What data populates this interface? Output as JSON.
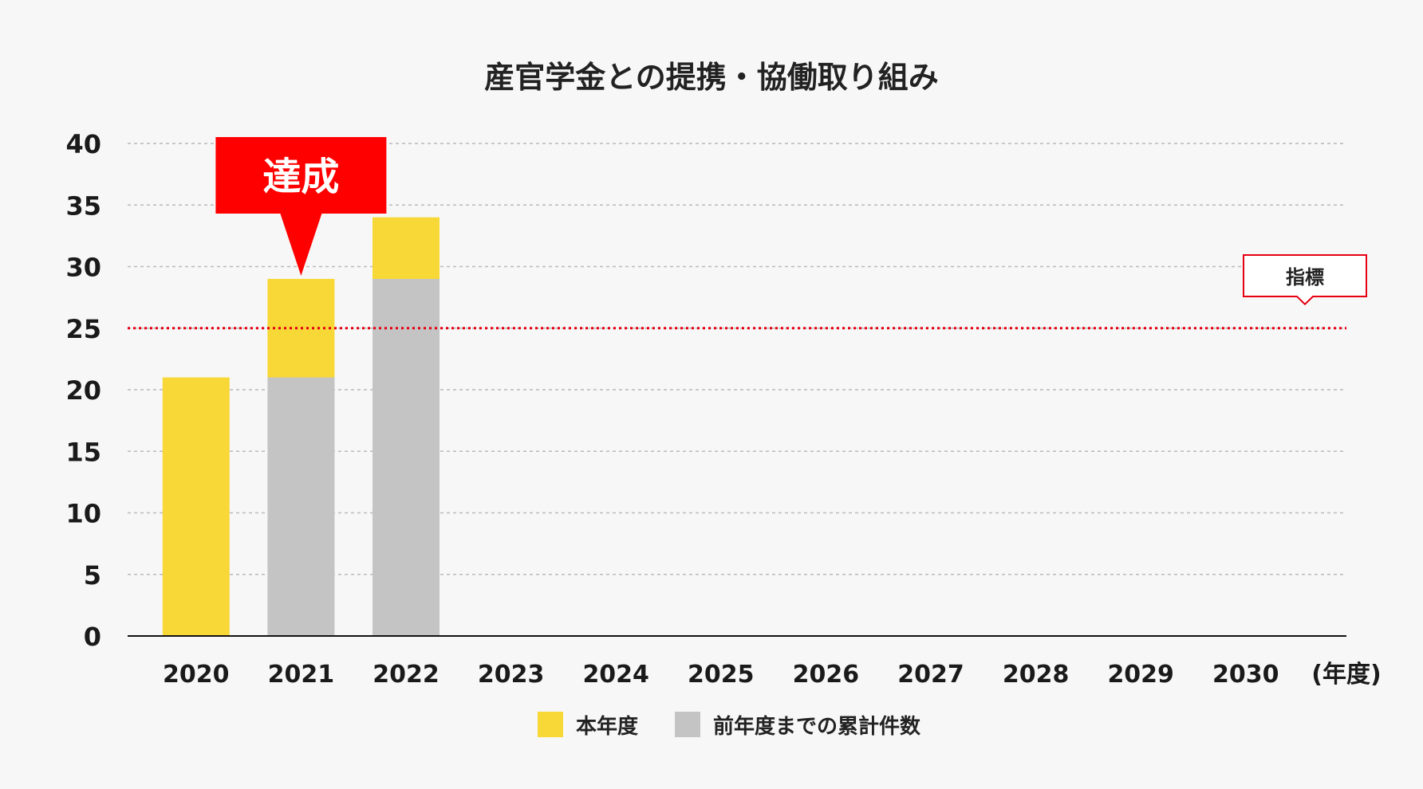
{
  "chart_data": {
    "type": "bar",
    "stacked": true,
    "title": "産官学金との提携・協働取り組み",
    "categories": [
      "2020",
      "2021",
      "2022",
      "2023",
      "2024",
      "2025",
      "2026",
      "2027",
      "2028",
      "2029",
      "2030"
    ],
    "x_unit_label": "(年度)",
    "series": [
      {
        "name": "前年度までの累計件数",
        "color": "#c4c4c4",
        "values": [
          0,
          21,
          29,
          null,
          null,
          null,
          null,
          null,
          null,
          null,
          null
        ]
      },
      {
        "name": "本年度",
        "color": "#f7d836",
        "values": [
          21,
          8,
          5,
          null,
          null,
          null,
          null,
          null,
          null,
          null,
          null
        ]
      }
    ],
    "ylim": [
      0,
      40
    ],
    "yticks": [
      0,
      5,
      10,
      15,
      20,
      25,
      30,
      35,
      40
    ],
    "grid": true,
    "legend_position": "bottom",
    "legend_order": [
      "本年度",
      "前年度までの累計件数"
    ],
    "target": {
      "label": "指標",
      "value": 25,
      "color": "#e60012"
    },
    "highlight": {
      "label": "達成",
      "category": "2021",
      "color": "#ff0000"
    }
  }
}
